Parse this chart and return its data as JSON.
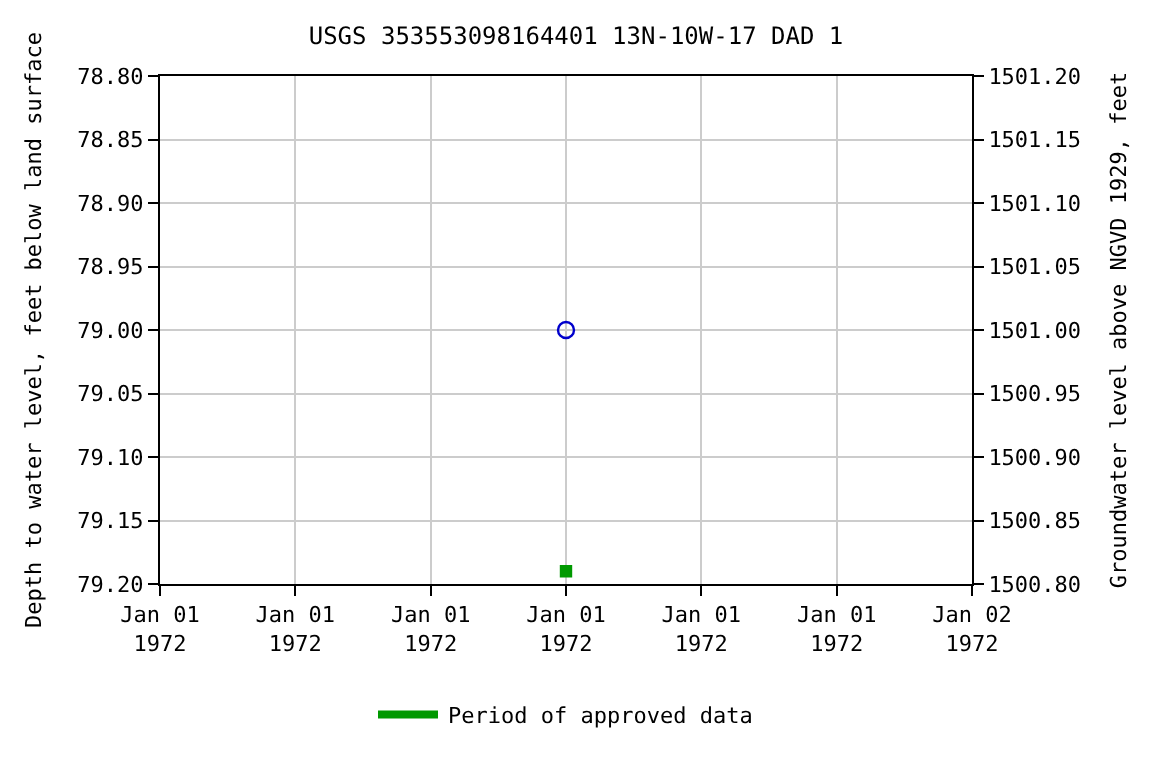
{
  "chart_data": {
    "type": "scatter",
    "title": "USGS 353553098164401 13N-10W-17 DAD 1",
    "ylabel": "Depth to water level, feet below land surface",
    "y2label": "Groundwater level above NGVD 1929, feet",
    "x": [
      "1972-01-01T12:00"
    ],
    "series": [
      {
        "color": "#0000cc",
        "values": [
          79.0
        ],
        "marker": "circle"
      },
      {
        "name": "Period of approved data",
        "color": "#009900",
        "values": [
          79.19
        ],
        "marker": "square"
      }
    ],
    "xlim": [
      "1972-01-01T00:00",
      "1972-01-02T00:00"
    ],
    "xticks": [
      {
        "value": "1972-01-01T00:00",
        "label": "Jan 01\n1972"
      },
      {
        "value": "1972-01-01T04:00",
        "label": "Jan 01\n1972"
      },
      {
        "value": "1972-01-01T08:00",
        "label": "Jan 01\n1972"
      },
      {
        "value": "1972-01-01T12:00",
        "label": "Jan 01\n1972"
      },
      {
        "value": "1972-01-01T16:00",
        "label": "Jan 01\n1972"
      },
      {
        "value": "1972-01-01T20:00",
        "label": "Jan 01\n1972"
      },
      {
        "value": "1972-01-02T00:00",
        "label": "Jan 02\n1972"
      }
    ],
    "ylim": [
      79.2,
      78.8
    ],
    "yticks": [
      {
        "value": 78.8,
        "label": "78.80"
      },
      {
        "value": 78.85,
        "label": "78.85"
      },
      {
        "value": 78.9,
        "label": "78.90"
      },
      {
        "value": 78.95,
        "label": "78.95"
      },
      {
        "value": 79.0,
        "label": "79.00"
      },
      {
        "value": 79.05,
        "label": "79.05"
      },
      {
        "value": 79.1,
        "label": "79.10"
      },
      {
        "value": 79.15,
        "label": "79.15"
      },
      {
        "value": 79.2,
        "label": "79.20"
      }
    ],
    "y2lim": [
      1500.8,
      1501.2
    ],
    "y2ticks": [
      {
        "value": 1500.8,
        "label": "1500.80"
      },
      {
        "value": 1500.85,
        "label": "1500.85"
      },
      {
        "value": 1500.9,
        "label": "1500.90"
      },
      {
        "value": 1500.95,
        "label": "1500.95"
      },
      {
        "value": 1501.0,
        "label": "1501.00"
      },
      {
        "value": 1501.05,
        "label": "1501.05"
      },
      {
        "value": 1501.1,
        "label": "1501.10"
      },
      {
        "value": 1501.15,
        "label": "1501.15"
      },
      {
        "value": 1501.2,
        "label": "1501.20"
      }
    ],
    "grid": true,
    "legend": "bottom"
  }
}
